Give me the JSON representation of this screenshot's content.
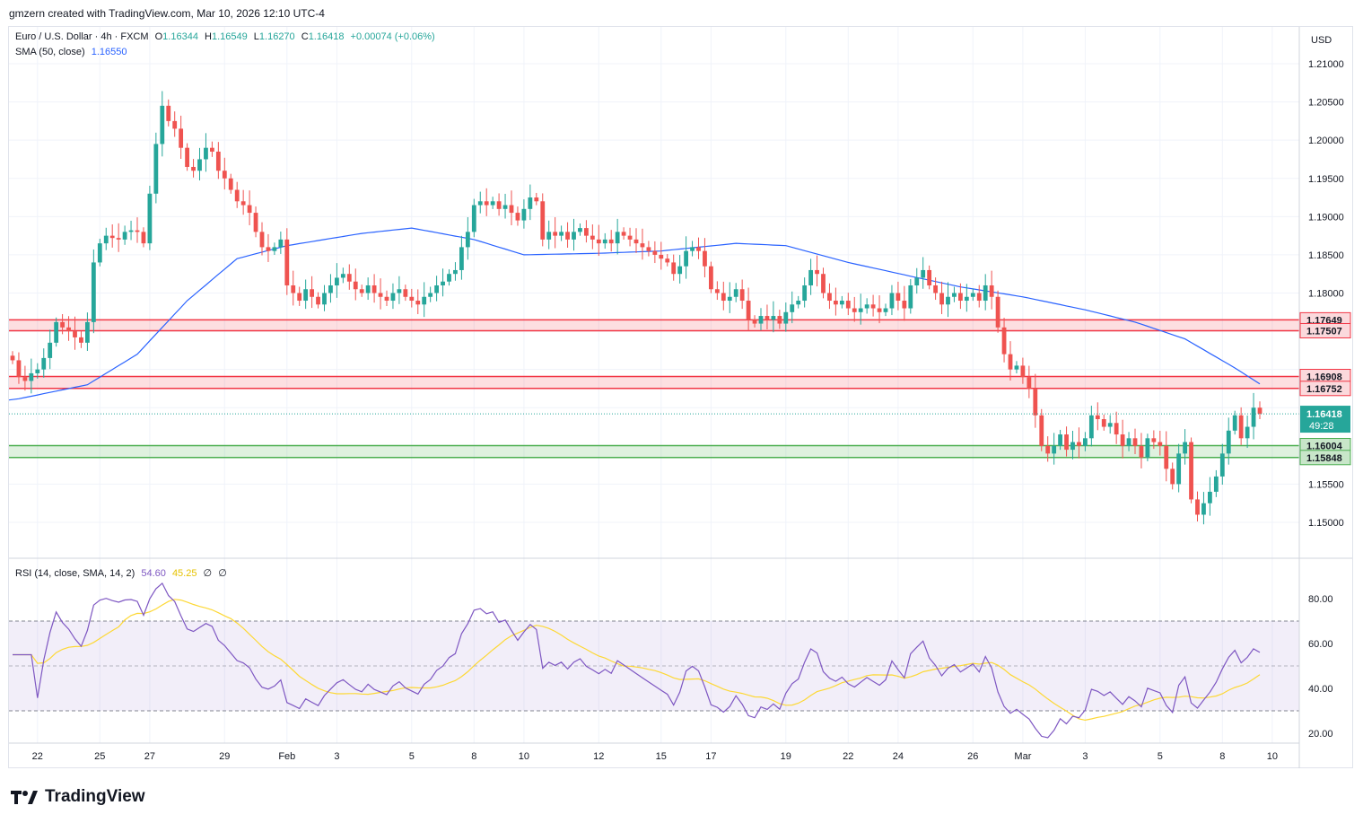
{
  "header": {
    "attribution": "gmzern created with TradingView.com, Mar 10, 2026 12:10 UTC-4"
  },
  "legend": {
    "symbol": "Euro / U.S. Dollar · 4h · FXCM",
    "o_label": "O",
    "o_value": "1.16344",
    "h_label": "H",
    "h_value": "1.16549",
    "l_label": "L",
    "l_value": "1.16270",
    "c_label": "C",
    "c_value": "1.16418",
    "change": "+0.00074 (+0.06%)",
    "sma_label": "SMA (50, close)",
    "sma_value": "1.16550",
    "rsi_label": "RSI (14, close, SMA, 14, 2)",
    "rsi_value": "54.60",
    "rsi_ma_value": "45.25",
    "rsi_extra1": "∅",
    "rsi_extra2": "∅"
  },
  "currency": "USD",
  "price_badge": {
    "price": "1.16418",
    "countdown": "49:28"
  },
  "colors": {
    "up": "#26a69a",
    "down": "#ef5350",
    "sma": "#2962ff",
    "rsi": "#7e57c2",
    "rsi_ma": "#fdd835",
    "resistance": "#f23645",
    "support": "#4caf50"
  },
  "zones": [
    {
      "kind": "resistance",
      "top": "1.17649",
      "bottom": "1.17507"
    },
    {
      "kind": "resistance",
      "top": "1.16908",
      "bottom": "1.16752"
    },
    {
      "kind": "support",
      "top": "1.16004",
      "bottom": "1.15848"
    }
  ],
  "footer": {
    "brand": "TradingView"
  },
  "chart_data": {
    "type": "candlestick",
    "title": "Euro / U.S. Dollar · 4h · FXCM",
    "y_ticks": [
      "1.21000",
      "1.20500",
      "1.20000",
      "1.19500",
      "1.19000",
      "1.18500",
      "1.18000",
      "1.15500",
      "1.15000"
    ],
    "ylim": [
      1.146,
      1.213
    ],
    "x_tick_labels": [
      {
        "label": "22",
        "bar": 4
      },
      {
        "label": "25",
        "bar": 14
      },
      {
        "label": "27",
        "bar": 22
      },
      {
        "label": "29",
        "bar": 34
      },
      {
        "label": "Feb",
        "bar": 44
      },
      {
        "label": "3",
        "bar": 52
      },
      {
        "label": "5",
        "bar": 64
      },
      {
        "label": "8",
        "bar": 74
      },
      {
        "label": "10",
        "bar": 82
      },
      {
        "label": "12",
        "bar": 94
      },
      {
        "label": "15",
        "bar": 104
      },
      {
        "label": "17",
        "bar": 112
      },
      {
        "label": "19",
        "bar": 124
      },
      {
        "label": "22",
        "bar": 134
      },
      {
        "label": "24",
        "bar": 142
      },
      {
        "label": "26",
        "bar": 154
      },
      {
        "label": "Mar",
        "bar": 162
      },
      {
        "label": "3",
        "bar": 172
      },
      {
        "label": "5",
        "bar": 184
      },
      {
        "label": "8",
        "bar": 194
      },
      {
        "label": "10",
        "bar": 202
      }
    ],
    "closes": [
      1.1712,
      1.169,
      1.1685,
      1.1695,
      1.17,
      1.1715,
      1.1735,
      1.1762,
      1.1755,
      1.175,
      1.1742,
      1.1735,
      1.1762,
      1.184,
      1.1865,
      1.1875,
      1.1872,
      1.187,
      1.188,
      1.1882,
      1.188,
      1.1865,
      1.193,
      1.1995,
      1.2045,
      1.2025,
      1.2015,
      1.199,
      1.1965,
      1.196,
      1.1975,
      1.199,
      1.1985,
      1.196,
      1.195,
      1.1935,
      1.192,
      1.1915,
      1.1905,
      1.188,
      1.186,
      1.1855,
      1.186,
      1.187,
      1.181,
      1.18,
      1.179,
      1.1805,
      1.1795,
      1.1785,
      1.18,
      1.181,
      1.182,
      1.1825,
      1.1815,
      1.1805,
      1.18,
      1.181,
      1.18,
      1.1795,
      1.179,
      1.18,
      1.1805,
      1.1795,
      1.179,
      1.1785,
      1.1795,
      1.18,
      1.181,
      1.1815,
      1.1825,
      1.183,
      1.186,
      1.188,
      1.1915,
      1.192,
      1.1915,
      1.192,
      1.191,
      1.1915,
      1.1905,
      1.1895,
      1.191,
      1.1925,
      1.192,
      1.187,
      1.188,
      1.1875,
      1.188,
      1.187,
      1.188,
      1.1885,
      1.1875,
      1.187,
      1.1865,
      1.187,
      1.1865,
      1.188,
      1.1875,
      1.187,
      1.1865,
      1.186,
      1.1855,
      1.185,
      1.1845,
      1.184,
      1.1825,
      1.1835,
      1.1855,
      1.186,
      1.1855,
      1.1835,
      1.1805,
      1.18,
      1.179,
      1.1795,
      1.1805,
      1.179,
      1.1765,
      1.176,
      1.177,
      1.1765,
      1.177,
      1.176,
      1.1775,
      1.1785,
      1.179,
      1.181,
      1.183,
      1.1825,
      1.18,
      1.179,
      1.1785,
      1.179,
      1.178,
      1.1775,
      1.178,
      1.1785,
      1.178,
      1.1775,
      1.178,
      1.18,
      1.179,
      1.178,
      1.181,
      1.182,
      1.183,
      1.181,
      1.18,
      1.1785,
      1.1795,
      1.18,
      1.179,
      1.1795,
      1.18,
      1.179,
      1.181,
      1.1795,
      1.1755,
      1.172,
      1.17,
      1.1705,
      1.169,
      1.1675,
      1.164,
      1.16,
      1.159,
      1.16,
      1.1615,
      1.1595,
      1.1605,
      1.16,
      1.161,
      1.164,
      1.1635,
      1.1625,
      1.163,
      1.1615,
      1.16,
      1.161,
      1.16,
      1.1585,
      1.161,
      1.1605,
      1.16,
      1.157,
      1.155,
      1.159,
      1.1605,
      1.153,
      1.151,
      1.1525,
      1.154,
      1.156,
      1.159,
      1.162,
      1.164,
      1.161,
      1.1625,
      1.165,
      1.1642
    ],
    "sma_anchors": [
      [
        0,
        1.166
      ],
      [
        12,
        1.168
      ],
      [
        20,
        1.172
      ],
      [
        28,
        1.179
      ],
      [
        36,
        1.1845
      ],
      [
        44,
        1.1862
      ],
      [
        56,
        1.1878
      ],
      [
        64,
        1.1885
      ],
      [
        74,
        1.187
      ],
      [
        82,
        1.185
      ],
      [
        94,
        1.1852
      ],
      [
        104,
        1.1855
      ],
      [
        116,
        1.1865
      ],
      [
        124,
        1.1862
      ],
      [
        134,
        1.184
      ],
      [
        144,
        1.1822
      ],
      [
        152,
        1.1808
      ],
      [
        162,
        1.1795
      ],
      [
        172,
        1.1778
      ],
      [
        180,
        1.1762
      ],
      [
        188,
        1.174
      ],
      [
        196,
        1.1702
      ],
      [
        205,
        1.1655
      ]
    ],
    "rsi_ticks": [
      "80.00",
      "60.00",
      "40.00",
      "20.00"
    ],
    "rsi_levels": {
      "upper": 70,
      "middle": 50,
      "lower": 30
    },
    "rsi_last": 54.6,
    "rsi_ma_last": 45.25
  }
}
